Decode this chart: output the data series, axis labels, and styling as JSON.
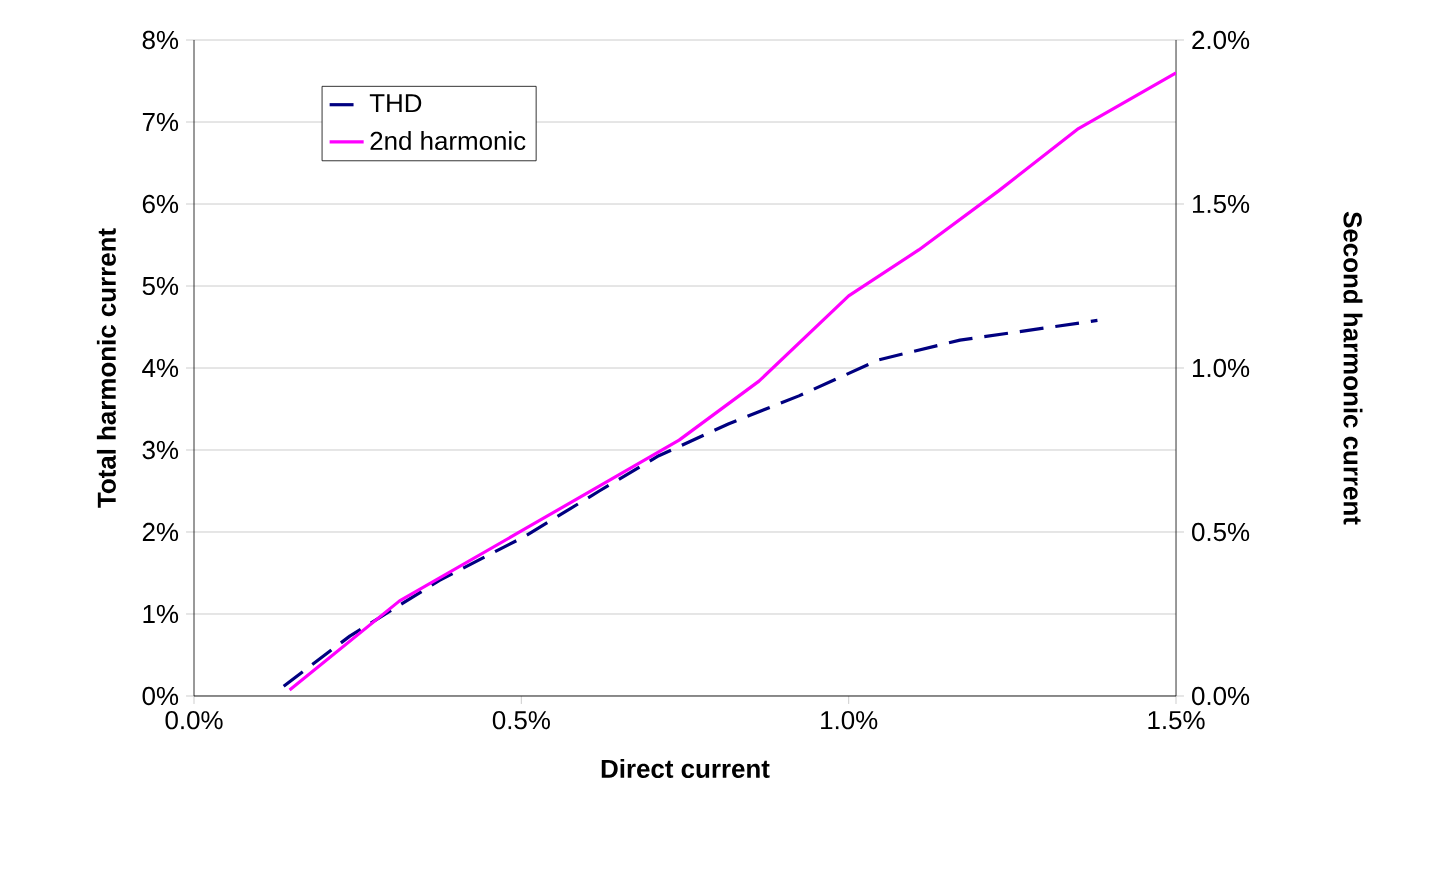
{
  "chart_data": {
    "type": "line",
    "xlabel": "Direct current",
    "ylabel": "Total harmonic current",
    "y2label": "Second harmonic current",
    "xlim": [
      0,
      1.5
    ],
    "xticks": [
      {
        "value": 0,
        "label": "0.0%"
      },
      {
        "value": 0.5,
        "label": "0.5%"
      },
      {
        "value": 1.0,
        "label": "1.0%"
      },
      {
        "value": 1.5,
        "label": "1.5%"
      }
    ],
    "ylim": [
      0,
      8
    ],
    "yticks": [
      {
        "value": 0,
        "label": "0%"
      },
      {
        "value": 1,
        "label": "1%"
      },
      {
        "value": 2,
        "label": "2%"
      },
      {
        "value": 3,
        "label": "3%"
      },
      {
        "value": 4,
        "label": "4%"
      },
      {
        "value": 5,
        "label": "5%"
      },
      {
        "value": 6,
        "label": "6%"
      },
      {
        "value": 7,
        "label": "7%"
      },
      {
        "value": 8,
        "label": "8%"
      }
    ],
    "y2lim": [
      0,
      2
    ],
    "y2ticks": [
      {
        "value": 0,
        "label": "0.0%"
      },
      {
        "value": 0.5,
        "label": "0.5%"
      },
      {
        "value": 1.0,
        "label": "1.0%"
      },
      {
        "value": 1.5,
        "label": "1.5%"
      },
      {
        "value": 2.0,
        "label": "2.0%"
      }
    ],
    "grid": "y",
    "legend": "top left",
    "series": [
      {
        "name": "THD",
        "color": "#000080",
        "line_style": "dashed",
        "x": [
          0.137,
          0.238,
          0.375,
          0.506,
          0.619,
          0.71,
          0.817,
          0.924,
          1.046,
          1.17,
          1.38
        ],
        "values": [
          0.12,
          0.73,
          1.41,
          1.95,
          2.5,
          2.93,
          3.32,
          3.66,
          4.1,
          4.34,
          4.58
        ]
      },
      {
        "name": "2nd harmonic",
        "color": "#ff00ff",
        "line_style": "solid",
        "axis": "y2",
        "x": [
          0.146,
          0.314,
          0.506,
          0.619,
          0.741,
          0.863,
          1.0,
          1.107,
          1.229,
          1.351,
          1.5
        ],
        "values": [
          0.018,
          0.29,
          0.51,
          0.64,
          0.78,
          0.96,
          1.22,
          1.36,
          1.54,
          1.73,
          1.9
        ]
      }
    ]
  }
}
